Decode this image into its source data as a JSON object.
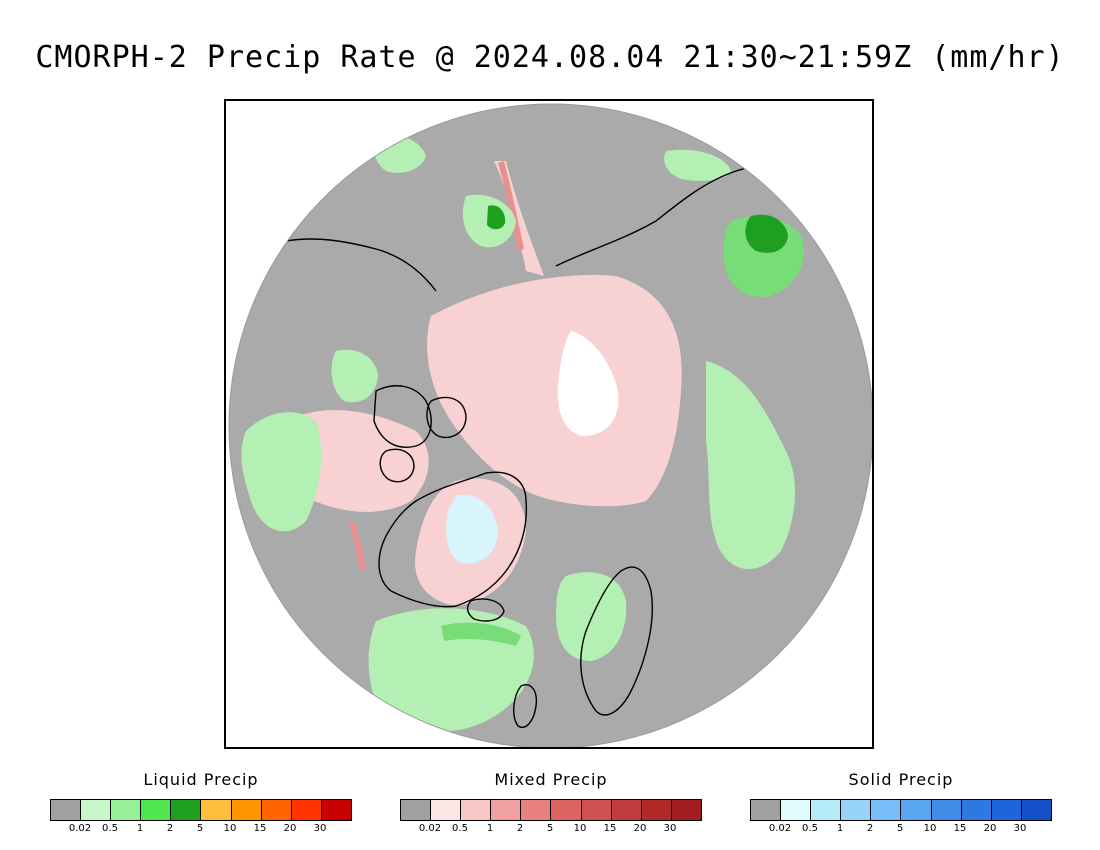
{
  "title": "CMORPH-2 Precip Rate @ 2024.08.04 21:30~21:59Z (mm/hr)",
  "map": {
    "projection": "polar stereographic",
    "colors": {
      "no_precip": "#aaaaaa",
      "liquid_light": "#b4f0b4",
      "liquid_mid": "#78dc78",
      "liquid_heavy": "#1ea01e",
      "mixed_light": "#f8d2d2",
      "mixed_mid": "#e89090",
      "snow_light": "#d8f4fc",
      "coastline": "#000000"
    }
  },
  "legends": [
    {
      "title": "Liquid Precip",
      "ticks": [
        "0.02",
        "0.5",
        "1",
        "2",
        "5",
        "10",
        "15",
        "20",
        "30"
      ],
      "colors": [
        "#a0a0a0",
        "#c8f8c8",
        "#96f096",
        "#50e650",
        "#1ea01e",
        "#ffbe3c",
        "#ff9600",
        "#ff6400",
        "#ff3200",
        "#c80000"
      ]
    },
    {
      "title": "Mixed Precip",
      "ticks": [
        "0.02",
        "0.5",
        "1",
        "2",
        "5",
        "10",
        "15",
        "20",
        "30"
      ],
      "colors": [
        "#a0a0a0",
        "#fde6e6",
        "#f8c8c8",
        "#f0a0a0",
        "#e88080",
        "#de6464",
        "#d05050",
        "#c03c3c",
        "#b02828",
        "#a01e1e"
      ]
    },
    {
      "title": "Solid Precip",
      "ticks": [
        "0.02",
        "0.5",
        "1",
        "2",
        "5",
        "10",
        "15",
        "20",
        "30"
      ],
      "colors": [
        "#a0a0a0",
        "#e0fcfc",
        "#b4ecfa",
        "#96d2fa",
        "#78befa",
        "#5aa5f0",
        "#418ce6",
        "#2d78e1",
        "#1e64dc",
        "#1450c8"
      ]
    }
  ]
}
